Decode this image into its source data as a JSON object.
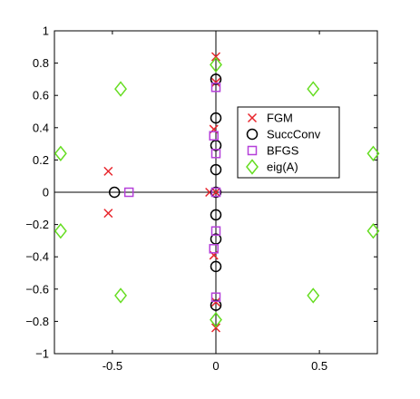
{
  "chart_data": {
    "type": "scatter",
    "title": "",
    "xlabel": "",
    "ylabel": "",
    "xlim": [
      -0.78,
      0.78
    ],
    "ylim": [
      -1,
      1
    ],
    "xticks": [
      -0.5,
      0,
      0.5
    ],
    "xtick_labels": [
      "-0.5",
      "0",
      "0.5"
    ],
    "yticks": [
      -1,
      -0.8,
      -0.6,
      -0.4,
      -0.2,
      0,
      0.2,
      0.4,
      0.6,
      0.8,
      1
    ],
    "ytick_labels": [
      "−1",
      "−0.8",
      "−0.6",
      "−0.4",
      "−0.2",
      "0",
      "0.2",
      "0.4",
      "0.6",
      "0.8",
      "1"
    ],
    "grid": false,
    "axis_lines_through_origin": true,
    "legend_position": "center-right",
    "series": [
      {
        "name": "FGM",
        "marker": "x",
        "color": "#e8262d",
        "points": [
          [
            0,
            0.84
          ],
          [
            0,
            -0.84
          ],
          [
            0,
            0.68
          ],
          [
            0,
            -0.68
          ],
          [
            -0.01,
            0.39
          ],
          [
            -0.01,
            -0.39
          ],
          [
            -0.52,
            0.13
          ],
          [
            -0.52,
            -0.13
          ],
          [
            -0.03,
            0
          ],
          [
            0,
            0
          ]
        ]
      },
      {
        "name": "SuccConv",
        "marker": "circle",
        "color": "#000000",
        "points": [
          [
            -0.49,
            0
          ],
          [
            0,
            0.7
          ],
          [
            0,
            -0.7
          ],
          [
            0,
            0.46
          ],
          [
            0,
            -0.46
          ],
          [
            0,
            0.29
          ],
          [
            0,
            -0.29
          ],
          [
            0,
            0.14
          ],
          [
            0,
            -0.14
          ],
          [
            0,
            0
          ]
        ]
      },
      {
        "name": "BFGS",
        "marker": "square",
        "color": "#b540d9",
        "points": [
          [
            -0.42,
            0
          ],
          [
            0,
            0.65
          ],
          [
            0,
            -0.65
          ],
          [
            -0.01,
            0.35
          ],
          [
            -0.01,
            -0.35
          ],
          [
            0,
            0.24
          ],
          [
            0,
            -0.24
          ],
          [
            0,
            0
          ]
        ]
      },
      {
        "name": "eig(A)",
        "marker": "diamond",
        "color": "#66dd22",
        "points": [
          [
            0,
            0.79
          ],
          [
            0,
            -0.79
          ],
          [
            -0.46,
            0.64
          ],
          [
            -0.46,
            -0.64
          ],
          [
            0.47,
            0.64
          ],
          [
            0.47,
            -0.64
          ],
          [
            -0.75,
            0.24
          ],
          [
            -0.75,
            -0.24
          ],
          [
            0.76,
            0.24
          ],
          [
            0.76,
            -0.24
          ]
        ]
      }
    ]
  }
}
